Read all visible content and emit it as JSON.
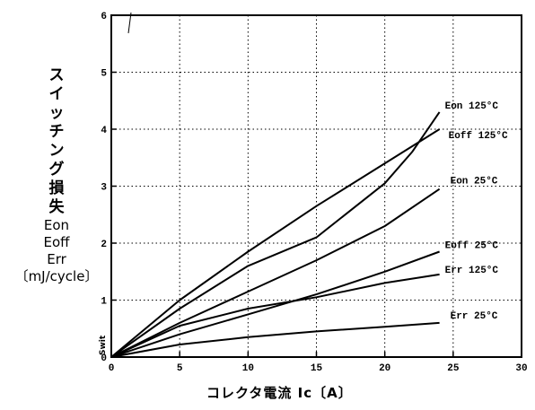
{
  "chart_data": {
    "type": "line",
    "ylabel_chars": [
      "ス",
      "イ",
      "ッ",
      "チ",
      "ン",
      "グ",
      "損",
      "失"
    ],
    "ylabel_symbols": [
      "Eon",
      "Eoff",
      "Err"
    ],
    "ylabel_unit": "〔mJ/cycle〕",
    "xlabel": "コレクタ電流 Ic〔A〕",
    "corner_label": "Swit",
    "xlim": [
      0,
      30
    ],
    "ylim": [
      0,
      6
    ],
    "xticks": [
      0,
      5,
      10,
      15,
      20,
      25,
      30
    ],
    "yticks": [
      0,
      1,
      2,
      3,
      4,
      5,
      6
    ],
    "grid": true,
    "series": [
      {
        "name": "Eon 125°C",
        "x": [
          0,
          5,
          10,
          15,
          20,
          22,
          24
        ],
        "y": [
          0,
          0.85,
          1.6,
          2.1,
          3.05,
          3.6,
          4.3
        ]
      },
      {
        "name": "Eoff 125°C",
        "x": [
          0,
          5,
          10,
          15,
          20,
          24
        ],
        "y": [
          0,
          1.0,
          1.85,
          2.65,
          3.4,
          4.0
        ]
      },
      {
        "name": "Eon 25°C",
        "x": [
          0,
          5,
          10,
          15,
          20,
          24
        ],
        "y": [
          0,
          0.6,
          1.15,
          1.7,
          2.3,
          2.95
        ]
      },
      {
        "name": "Eoff 25°C",
        "x": [
          0,
          5,
          10,
          15,
          20,
          24
        ],
        "y": [
          0,
          0.4,
          0.75,
          1.1,
          1.5,
          1.85
        ]
      },
      {
        "name": "Err 125°C",
        "x": [
          0,
          5,
          10,
          15,
          20,
          24
        ],
        "y": [
          0,
          0.55,
          0.85,
          1.05,
          1.3,
          1.45
        ]
      },
      {
        "name": "Err 25°C",
        "x": [
          0,
          5,
          10,
          15,
          20,
          24
        ],
        "y": [
          0,
          0.22,
          0.35,
          0.45,
          0.53,
          0.6
        ]
      }
    ]
  }
}
